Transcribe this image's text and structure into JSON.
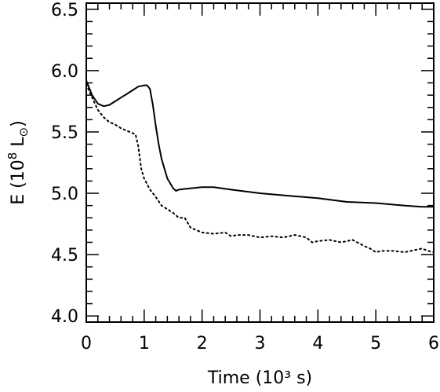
{
  "chart_data": {
    "type": "line",
    "title": "",
    "xlabel": "Time (10³ s)",
    "ylabel_main": "E (10",
    "ylabel_exp": "8",
    "ylabel_unit": " L",
    "ylabel_sub": "⊙",
    "ylabel_close": ")",
    "xlim": [
      0,
      6
    ],
    "ylim": [
      3.95,
      6.55
    ],
    "xticks": [
      0,
      1,
      2,
      3,
      4,
      5,
      6
    ],
    "xtick_labels": [
      "0",
      "1",
      "2",
      "3",
      "4",
      "5",
      "6"
    ],
    "yticks": [
      4.0,
      4.5,
      5.0,
      5.5,
      6.0,
      6.5
    ],
    "ytick_labels": [
      "4.0",
      "4.5",
      "5.0",
      "5.5",
      "6.0",
      "6.5"
    ],
    "x_minor_step": 0.2,
    "y_minor_step": 0.1,
    "grid": false,
    "legend": "none",
    "series": [
      {
        "style": "solid",
        "color": "#000000",
        "x": [
          0.0,
          0.1,
          0.2,
          0.3,
          0.4,
          0.5,
          0.6,
          0.7,
          0.8,
          0.9,
          1.0,
          1.05,
          1.1,
          1.15,
          1.2,
          1.25,
          1.3,
          1.4,
          1.5,
          1.55,
          1.6,
          1.8,
          2.0,
          2.2,
          2.5,
          3.0,
          3.5,
          4.0,
          4.5,
          5.0,
          5.5,
          5.8,
          6.0
        ],
        "y": [
          5.92,
          5.8,
          5.73,
          5.71,
          5.72,
          5.75,
          5.78,
          5.81,
          5.84,
          5.87,
          5.88,
          5.88,
          5.85,
          5.72,
          5.55,
          5.4,
          5.28,
          5.12,
          5.04,
          5.02,
          5.03,
          5.04,
          5.05,
          5.05,
          5.03,
          5.0,
          4.98,
          4.96,
          4.93,
          4.92,
          4.9,
          4.89,
          4.89
        ]
      },
      {
        "style": "dotted",
        "color": "#000000",
        "x": [
          0.0,
          0.1,
          0.2,
          0.3,
          0.4,
          0.5,
          0.6,
          0.7,
          0.8,
          0.85,
          0.9,
          0.95,
          1.0,
          1.1,
          1.2,
          1.3,
          1.4,
          1.5,
          1.6,
          1.7,
          1.8,
          1.9,
          2.0,
          2.2,
          2.4,
          2.5,
          2.6,
          2.8,
          3.0,
          3.2,
          3.4,
          3.6,
          3.8,
          3.9,
          4.0,
          4.2,
          4.4,
          4.6,
          4.8,
          4.9,
          5.0,
          5.1,
          5.3,
          5.5,
          5.7,
          5.8,
          5.9,
          6.0
        ],
        "y": [
          5.89,
          5.78,
          5.68,
          5.62,
          5.58,
          5.56,
          5.53,
          5.51,
          5.49,
          5.48,
          5.38,
          5.2,
          5.12,
          5.03,
          4.97,
          4.9,
          4.87,
          4.84,
          4.8,
          4.8,
          4.72,
          4.7,
          4.68,
          4.67,
          4.68,
          4.65,
          4.66,
          4.66,
          4.64,
          4.65,
          4.64,
          4.66,
          4.64,
          4.6,
          4.61,
          4.62,
          4.6,
          4.62,
          4.57,
          4.55,
          4.52,
          4.53,
          4.53,
          4.52,
          4.54,
          4.55,
          4.53,
          4.52
        ]
      }
    ]
  }
}
